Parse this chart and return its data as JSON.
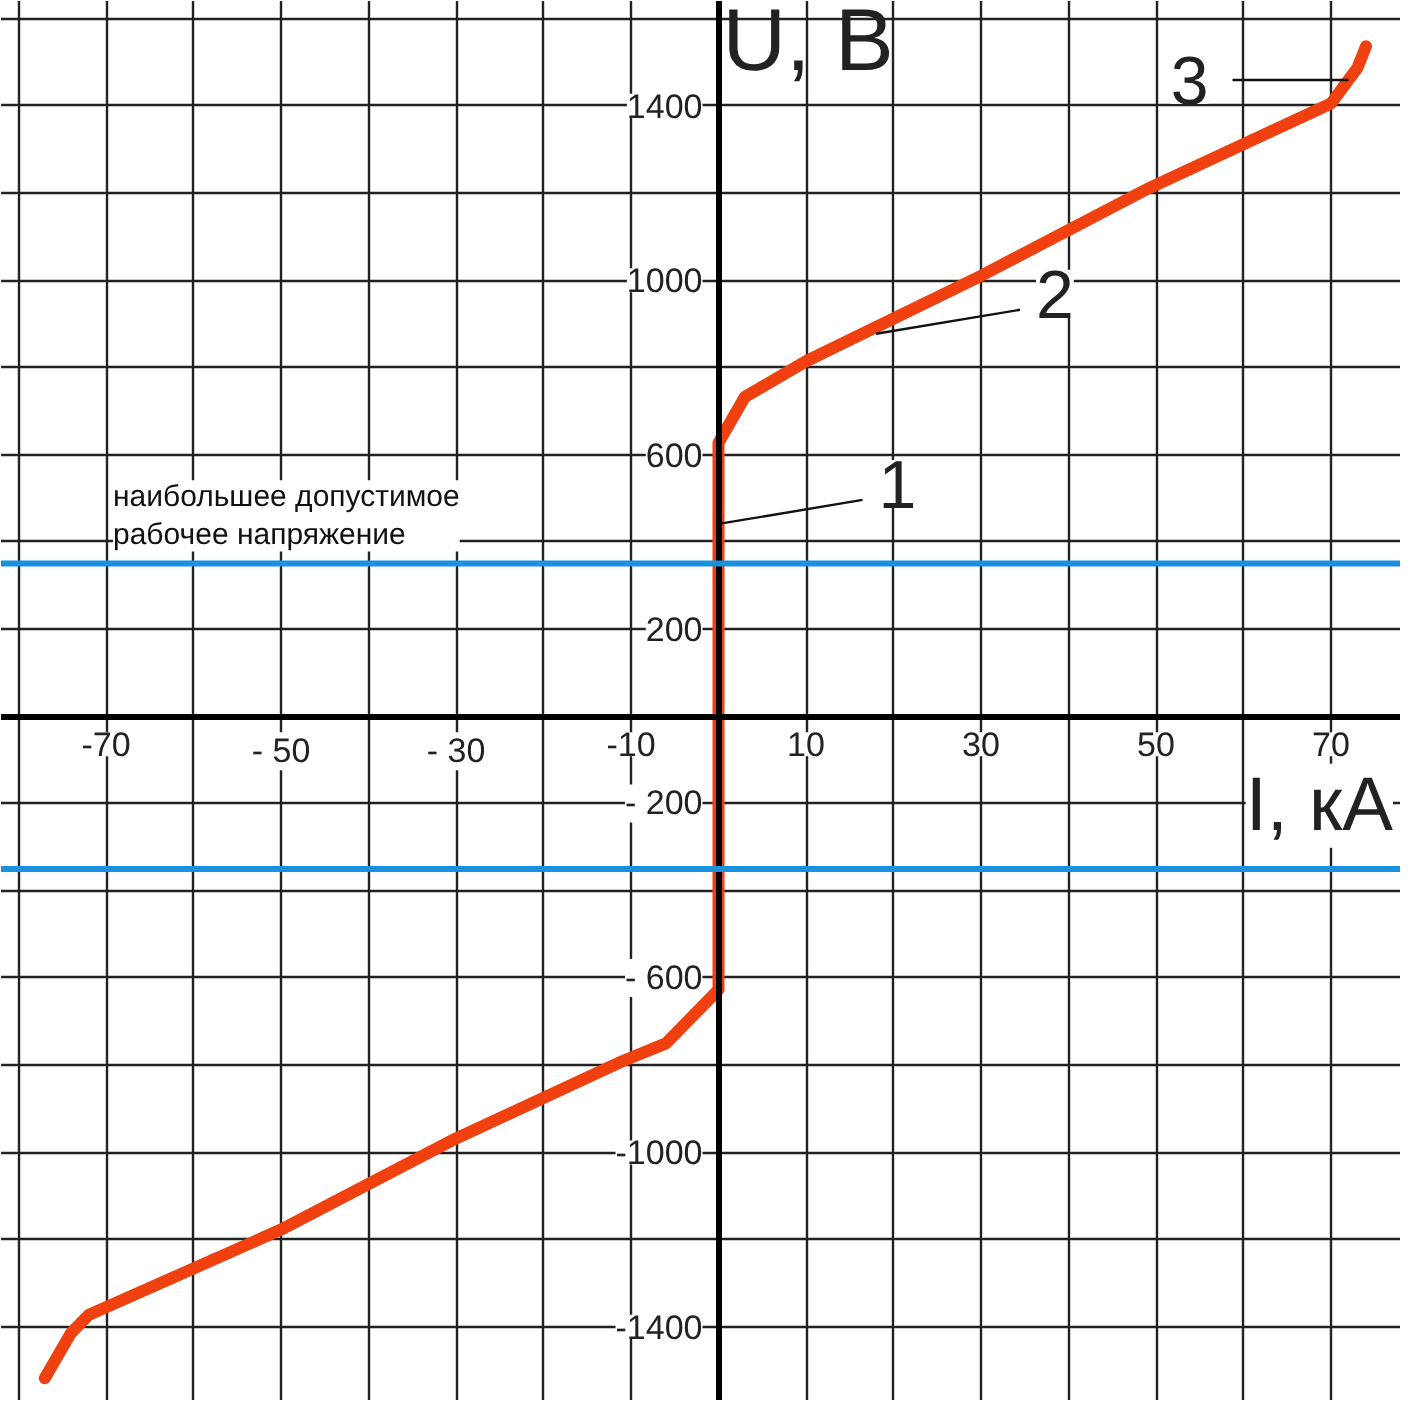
{
  "chart_data": {
    "type": "line",
    "xlabel": "I, кА",
    "ylabel": "U, В",
    "x": [
      -77,
      -74,
      -72,
      -50,
      -30,
      -11,
      -6,
      0,
      0,
      3,
      10,
      30,
      49,
      70,
      73,
      74
    ],
    "series": [
      {
        "color": "#f04010",
        "values": [
          -1518,
          -1414,
          -1373,
          -1177,
          -968,
          -791,
          -750,
          -627,
          627,
          732,
          814,
          1010,
          1209,
          1405,
          1486,
          1536
        ]
      }
    ],
    "xlim": [
      -82,
      78
    ],
    "ylim": [
      -1570,
      1640
    ],
    "xticks": [
      {
        "value": -80,
        "label": null
      },
      {
        "value": -70,
        "label": "-70"
      },
      {
        "value": -60,
        "label": null
      },
      {
        "value": -50,
        "label": "- 50"
      },
      {
        "value": -40,
        "label": null
      },
      {
        "value": -30,
        "label": "- 30"
      },
      {
        "value": -20,
        "label": null
      },
      {
        "value": -10,
        "label": "-10"
      },
      {
        "value": 0,
        "label": null
      },
      10,
      {
        "value": 20,
        "label": null
      },
      30,
      {
        "value": 40,
        "label": null
      },
      50,
      {
        "value": 60,
        "label": null
      },
      70
    ],
    "yticks": [
      {
        "value": -1400,
        "label": "-1400"
      },
      {
        "value": -1200,
        "label": null
      },
      {
        "value": -1000,
        "label": "-1000"
      },
      {
        "value": -800,
        "label": null
      },
      {
        "value": -600,
        "label": "- 600"
      },
      {
        "value": -400,
        "label": null
      },
      {
        "value": -200,
        "label": "- 200"
      },
      {
        "value": 0,
        "label": null
      },
      200,
      {
        "value": 400,
        "label": null
      },
      600,
      {
        "value": 800,
        "label": null
      },
      1000,
      {
        "value": 1200,
        "label": null
      },
      1400,
      {
        "value": 1600,
        "label": null
      }
    ],
    "grid": true,
    "marker": "none",
    "line_style": "solid",
    "ref_lines": [
      {
        "axis": "y",
        "value": 350,
        "label": "наибольшее допустимое\nрабочее напряжение",
        "color": "#1a90e0"
      },
      {
        "axis": "y",
        "value": -350,
        "color": "#1a90e0"
      }
    ],
    "annotations": [
      {
        "text": "1",
        "x": 0,
        "y": 441
      },
      {
        "text": "2",
        "x": 18,
        "y": 877
      },
      {
        "text": "3",
        "x": 72,
        "y": 1459
      }
    ]
  }
}
